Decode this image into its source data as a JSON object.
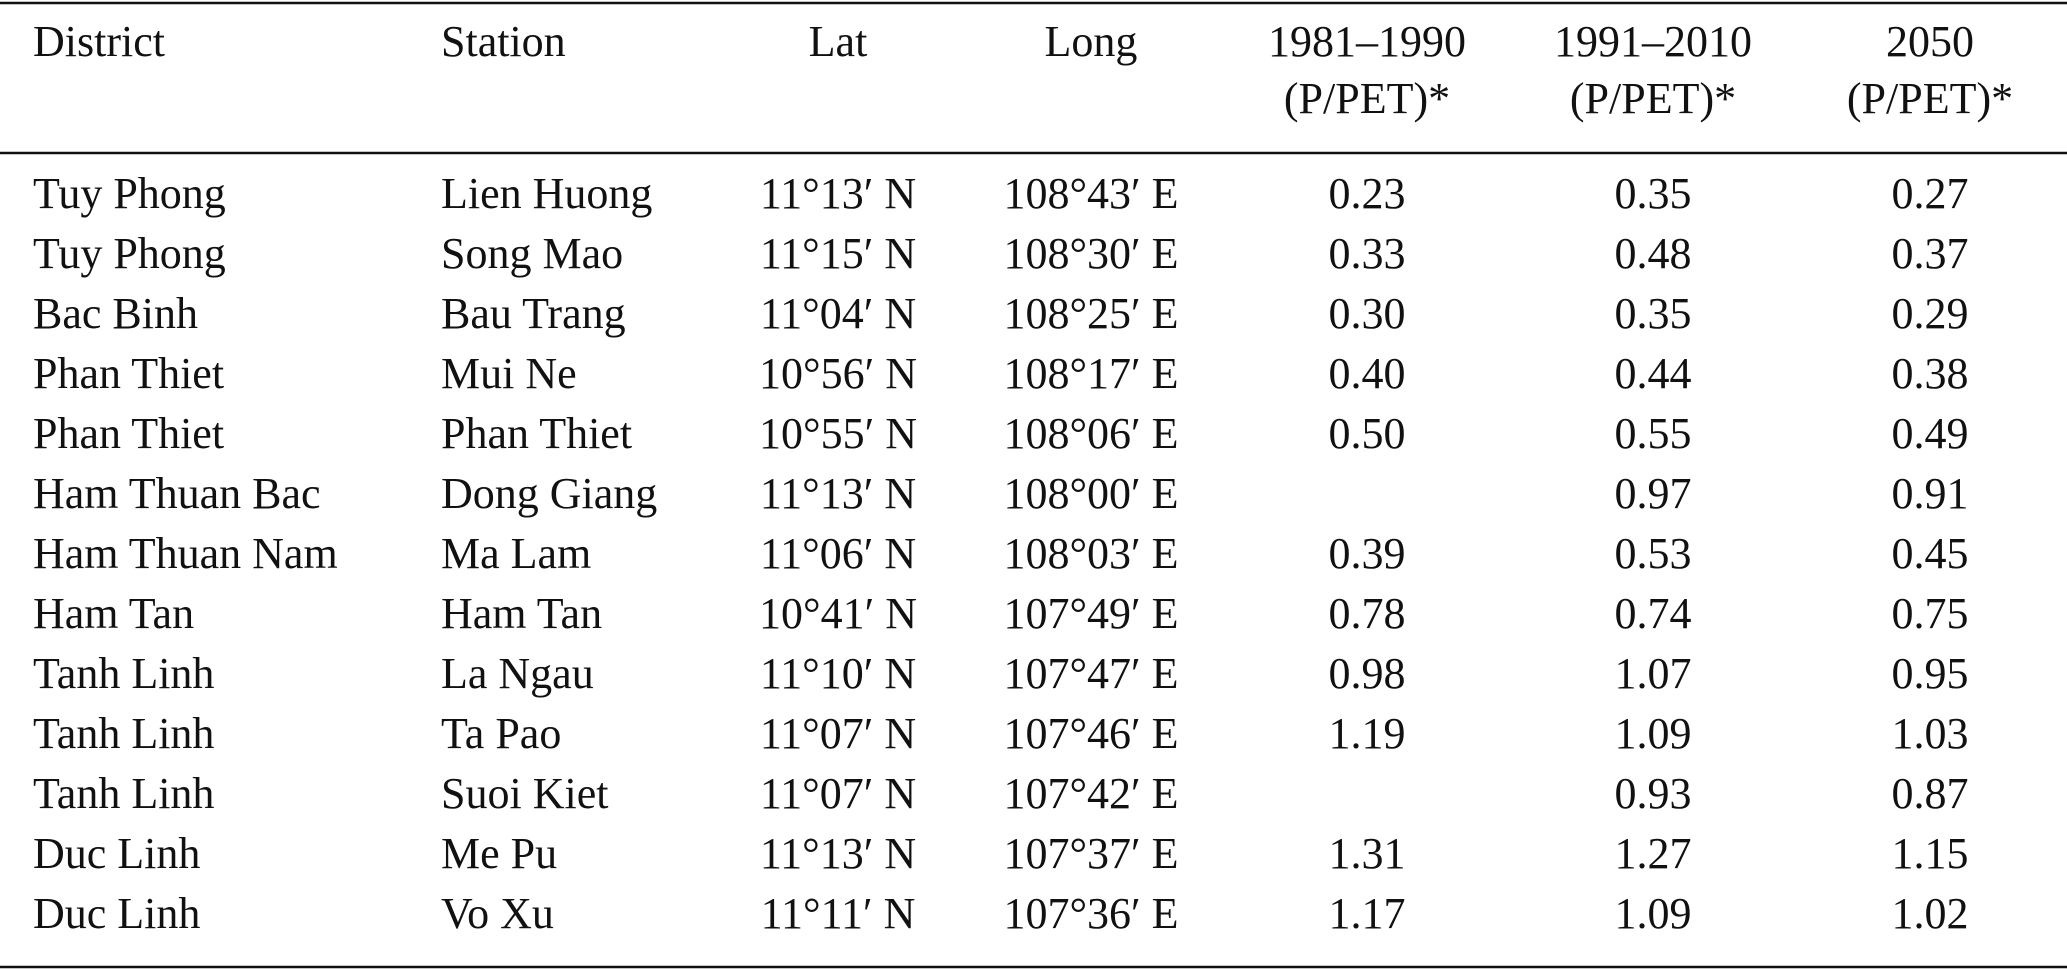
{
  "table": {
    "header": [
      [
        "District"
      ],
      [
        "Station"
      ],
      [
        "Lat"
      ],
      [
        "Long"
      ],
      [
        "1981–1990",
        "(P/PET)*"
      ],
      [
        "1991–2010",
        "(P/PET)*"
      ],
      [
        "2050",
        "(P/PET)*"
      ]
    ],
    "rows": [
      [
        "Tuy Phong",
        "Lien Huong",
        "11°13′ N",
        "108°43′ E",
        "0.23",
        "0.35",
        "0.27"
      ],
      [
        "Tuy Phong",
        "Song Mao",
        "11°15′ N",
        "108°30′ E",
        "0.33",
        "0.48",
        "0.37"
      ],
      [
        "Bac Binh",
        "Bau Trang",
        "11°04′ N",
        "108°25′ E",
        "0.30",
        "0.35",
        "0.29"
      ],
      [
        "Phan Thiet",
        "Mui Ne",
        "10°56′ N",
        "108°17′ E",
        "0.40",
        "0.44",
        "0.38"
      ],
      [
        "Phan Thiet",
        "Phan Thiet",
        "10°55′ N",
        "108°06′ E",
        "0.50",
        "0.55",
        "0.49"
      ],
      [
        "Ham Thuan Bac",
        "Dong Giang",
        "11°13′ N",
        "108°00′ E",
        null,
        "0.97",
        "0.91"
      ],
      [
        "Ham Thuan Nam",
        "Ma Lam",
        "11°06′ N",
        "108°03′ E",
        "0.39",
        "0.53",
        "0.45"
      ],
      [
        "Ham Tan",
        "Ham Tan",
        "10°41′ N",
        "107°49′ E",
        "0.78",
        "0.74",
        "0.75"
      ],
      [
        "Tanh Linh",
        "La Ngau",
        "11°10′ N",
        "107°47′ E",
        "0.98",
        "1.07",
        "0.95"
      ],
      [
        "Tanh Linh",
        "Ta Pao",
        "11°07′ N",
        "107°46′ E",
        "1.19",
        "1.09",
        "1.03"
      ],
      [
        "Tanh Linh",
        "Suoi Kiet",
        "11°07′ N",
        "107°42′ E",
        null,
        "0.93",
        "0.87"
      ],
      [
        "Duc Linh",
        "Me Pu",
        "11°13′ N",
        "107°37′ E",
        "1.31",
        "1.27",
        "1.15"
      ],
      [
        "Duc Linh",
        "Vo Xu",
        "11°11′ N",
        "107°36′ E",
        "1.17",
        "1.09",
        "1.02"
      ]
    ]
  }
}
